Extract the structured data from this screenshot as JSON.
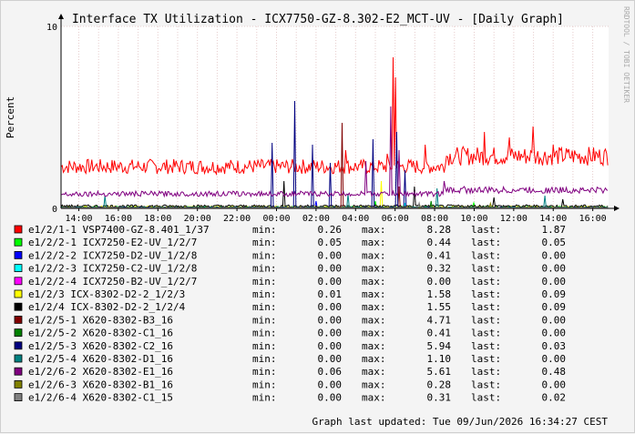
{
  "chart_data": {
    "type": "line",
    "title": "Interface TX Utilization - ICX7750-GZ-8.302-E2_MCT-UV - [Daily Graph]",
    "ylabel": "Percent",
    "xlabel": "",
    "ylim": [
      0,
      10
    ],
    "y_ticks": [
      "0",
      "10"
    ],
    "x_ticks": [
      "14:00",
      "16:00",
      "18:00",
      "20:00",
      "22:00",
      "00:00",
      "02:00",
      "04:00",
      "06:00",
      "08:00",
      "10:00",
      "12:00",
      "14:00",
      "16:00"
    ],
    "x_tick_hours": [
      14,
      16,
      18,
      20,
      22,
      24,
      26,
      28,
      30,
      32,
      34,
      36,
      38,
      40
    ],
    "x_range_hours": [
      13.1,
      40.8
    ],
    "grid": true,
    "watermark": "RRDTOOL / TOBI OETIKER",
    "updated": "Graph last updated: Tue 09/Jun/2026 16:34:27 CEST",
    "stat_labels": {
      "min": "min:",
      "max": "max:",
      "last": "last:"
    },
    "series": [
      {
        "name": "e1/2/1-1 VSP7400-GZ-8.401_1/37",
        "color": "#ff0000",
        "min": "0.26",
        "max": "8.28",
        "last": "1.87",
        "base": 2.3,
        "spikes": [
          [
            3.2,
            27.5
          ],
          [
            2.4,
            28.2
          ],
          [
            3.0,
            29.6
          ],
          [
            8.3,
            29.9
          ],
          [
            7.2,
            30.0
          ],
          [
            3.5,
            31.5
          ],
          [
            3.0,
            33.2
          ],
          [
            4.2,
            34.5
          ],
          [
            3.9,
            35.8
          ],
          [
            4.5,
            37.0
          ],
          [
            3.5,
            38.0
          ]
        ]
      },
      {
        "name": "e1/2/2-1 ICX7250-E2-UV_1/2/7",
        "color": "#00ff00",
        "min": "0.05",
        "max": "0.44",
        "last": "0.05",
        "base": 0.07,
        "spikes": [
          [
            0.4,
            29.0
          ],
          [
            0.3,
            34.0
          ]
        ]
      },
      {
        "name": "e1/2/2-2 ICX7250-D2-UV_1/2/8",
        "color": "#0000ff",
        "min": "0.00",
        "max": "0.41",
        "last": "0.00",
        "base": 0.02,
        "spikes": [
          [
            0.4,
            26.0
          ]
        ]
      },
      {
        "name": "e1/2/2-3 ICX7250-C2-UV_1/2/8",
        "color": "#00ffff",
        "min": "0.00",
        "max": "0.32",
        "last": "0.00",
        "base": 0.02,
        "spikes": [
          [
            0.3,
            30.5
          ]
        ]
      },
      {
        "name": "e1/2/2-4 ICX7250-B2-UV_1/2/7",
        "color": "#ff00ff",
        "min": "0.00",
        "max": "0.00",
        "last": "0.00",
        "base": 0.0,
        "spikes": []
      },
      {
        "name": "e1/2/3 ICX-8302-D2-2_1/2/3",
        "color": "#ffff00",
        "min": "0.01",
        "max": "1.58",
        "last": "0.09",
        "base": 0.08,
        "spikes": [
          [
            1.5,
            29.3
          ]
        ]
      },
      {
        "name": "e1/2/4 ICX-8302-D2-2_1/2/4",
        "color": "#000000",
        "min": "0.00",
        "max": "1.55",
        "last": "0.09",
        "base": 0.12,
        "spikes": [
          [
            1.5,
            24.4
          ],
          [
            1.2,
            31.0
          ],
          [
            0.6,
            35.0
          ],
          [
            0.5,
            38.5
          ]
        ]
      },
      {
        "name": "e1/2/5-1 X620-8302-B3_16",
        "color": "#800000",
        "min": "0.00",
        "max": "4.71",
        "last": "0.00",
        "base": 0.02,
        "spikes": [
          [
            4.7,
            27.3
          ],
          [
            1.2,
            30.2
          ]
        ]
      },
      {
        "name": "e1/2/5-2 X620-8302-C1_16",
        "color": "#008000",
        "min": "0.00",
        "max": "0.41",
        "last": "0.00",
        "base": 0.02,
        "spikes": [
          [
            0.4,
            31.8
          ]
        ]
      },
      {
        "name": "e1/2/5-3 X620-8302-C2_16",
        "color": "#000080",
        "min": "0.00",
        "max": "5.94",
        "last": "0.03",
        "base": 0.05,
        "spikes": [
          [
            3.6,
            23.8
          ],
          [
            5.9,
            24.9
          ],
          [
            3.5,
            25.8
          ],
          [
            2.5,
            26.7
          ],
          [
            3.8,
            28.9
          ],
          [
            4.2,
            30.1
          ],
          [
            2.1,
            30.5
          ]
        ]
      },
      {
        "name": "e1/2/5-4 X620-8302-D1_16",
        "color": "#008080",
        "min": "0.00",
        "max": "1.10",
        "last": "0.00",
        "base": 0.05,
        "spikes": [
          [
            0.7,
            15.3
          ],
          [
            0.8,
            27.6
          ],
          [
            1.1,
            32.1
          ],
          [
            0.7,
            37.6
          ]
        ]
      },
      {
        "name": "e1/2/6-2 X620-8302-E1_16",
        "color": "#800080",
        "min": "0.06",
        "max": "5.61",
        "last": "0.48",
        "base": 0.8,
        "spikes": [
          [
            2.6,
            28.5
          ],
          [
            5.6,
            29.8
          ],
          [
            3.2,
            30.2
          ],
          [
            1.5,
            32.5
          ],
          [
            1.2,
            33.5
          ],
          [
            1.1,
            36.5
          ]
        ]
      },
      {
        "name": "e1/2/6-3 X620-8302-B1_16",
        "color": "#808000",
        "min": "0.00",
        "max": "0.28",
        "last": "0.00",
        "base": 0.03,
        "spikes": [
          [
            0.28,
            34.8
          ]
        ]
      },
      {
        "name": "e1/2/6-4 X620-8302-C1_15",
        "color": "#808080",
        "min": "0.00",
        "max": "0.31",
        "last": "0.02",
        "base": 0.04,
        "spikes": [
          [
            0.3,
            31.2
          ]
        ]
      }
    ]
  }
}
